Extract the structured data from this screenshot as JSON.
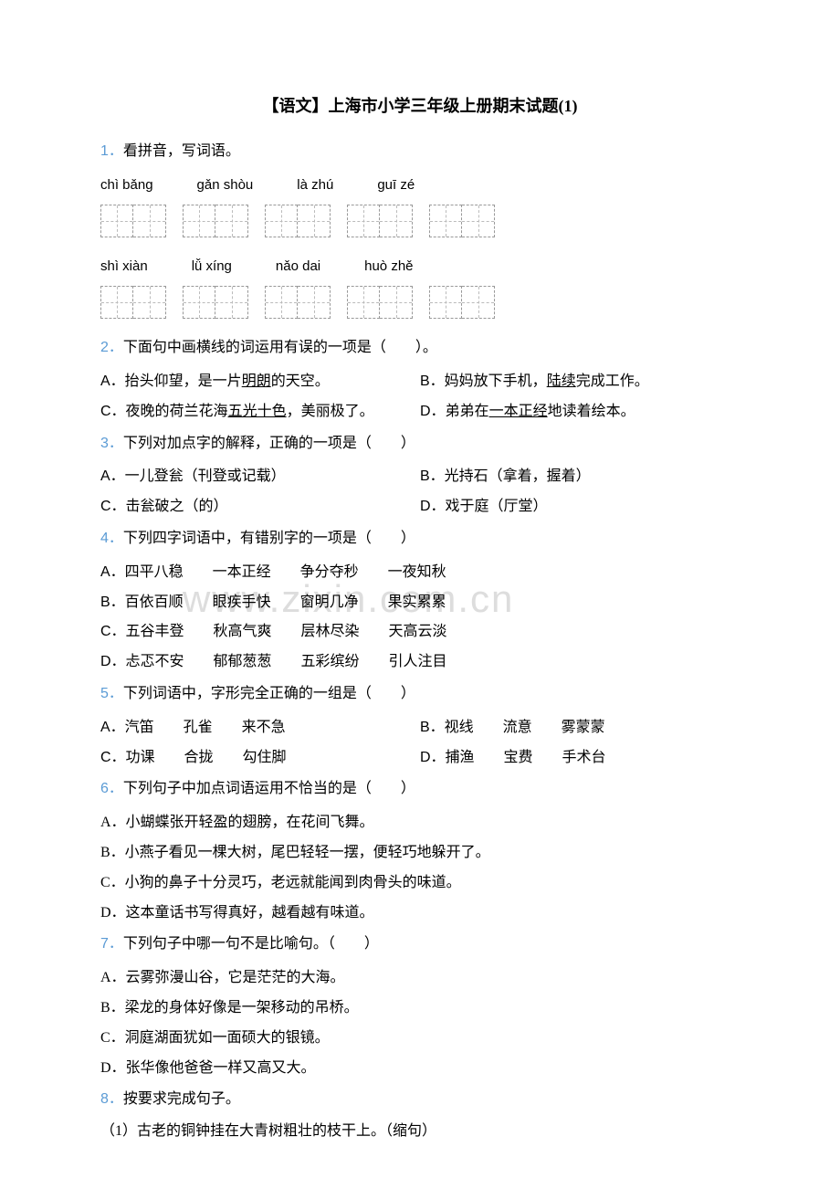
{
  "title": "【语文】上海市小学三年级上册期末试题(1)",
  "watermark": "www.zixin.com.cn",
  "q1": {
    "num": "1．",
    "text": "看拼音，写词语。",
    "row1": [
      "chì bǎng",
      "gǎn shòu",
      "là zhú",
      "guī zé"
    ],
    "row2": [
      "shì xiàn",
      "lǚ xíng",
      "nǎo dai",
      "huò zhě"
    ]
  },
  "q2": {
    "num": "2．",
    "text": "下面句中画横线的词运用有误的一项是（　　）。",
    "a": "A．抬头仰望，是一片",
    "a_u": "明朗",
    "a_end": "的天空。",
    "b": "B．妈妈放下手机，",
    "b_u": "陆续",
    "b_end": "完成工作。",
    "c": "C．夜晚的荷兰花海",
    "c_u": "五光十色",
    "c_end": "，美丽极了。",
    "d": "D．弟弟在",
    "d_u": "一本正经",
    "d_end": "地读着绘本。"
  },
  "q3": {
    "num": "3．",
    "text": "下列对加点字的解释，正确的一项是（　　）",
    "a": "A．一儿登瓮（刊登或记载）",
    "b": "B．光持石（拿着，握着）",
    "c": "C．击瓮破之（的）",
    "d": "D．戏于庭（厅堂）"
  },
  "q4": {
    "num": "4．",
    "text": "下列四字词语中，有错别字的一项是（　　）",
    "a": "A．四平八稳　　一本正经　　争分夺秒　　一夜知秋",
    "b": "B．百依百顺　　眼疾手快　　窗明几净　　果实累累",
    "c": "C．五谷丰登　　秋高气爽　　层林尽染　　天高云淡",
    "d": "D．忐忑不安　　郁郁葱葱　　五彩缤纷　　引人注目"
  },
  "q5": {
    "num": "5．",
    "text": "下列词语中，字形完全正确的一组是（　　）",
    "a": "A．汽笛　　孔雀　　来不急",
    "b": "B．视线　　流意　　雾蒙蒙",
    "c": "C．功课　　合拢　　勾住脚",
    "d": "D．捕渔　　宝费　　手术台"
  },
  "q6": {
    "num": "6．",
    "text": "下列句子中加点词语运用不恰当的是（　　）",
    "a": "A．小蝴蝶张开轻盈的翅膀，在花间飞舞。",
    "b": "B．小燕子看见一棵大树，尾巴轻轻一摆，便轻巧地躲开了。",
    "c": "C．小狗的鼻子十分灵巧，老远就能闻到肉骨头的味道。",
    "d": "D．这本童话书写得真好，越看越有味道。"
  },
  "q7": {
    "num": "7．",
    "text": "下列句子中哪一句不是比喻句。（　　）",
    "a": "A．云雾弥漫山谷，它是茫茫的大海。",
    "b": "B．梁龙的身体好像是一架移动的吊桥。",
    "c": "C．洞庭湖面犹如一面硕大的银镜。",
    "d": "D．张华像他爸爸一样又高又大。"
  },
  "q8": {
    "num": "8．",
    "text": "按要求完成句子。",
    "sub1": "（1）古老的铜钟挂在大青树粗壮的枝干上。（缩句）"
  }
}
